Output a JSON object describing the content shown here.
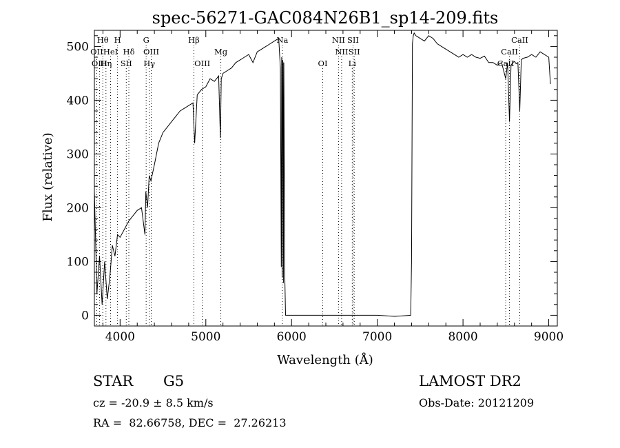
{
  "chart_data": {
    "type": "line",
    "title": "spec-56271-GAC084N26B1_sp14-209.fits",
    "xlabel": "Wavelength (Å)",
    "ylabel": "Flux (relative)",
    "xlim": [
      3700,
      9100
    ],
    "ylim": [
      -20,
      530
    ],
    "xticks": [
      4000,
      5000,
      6000,
      7000,
      8000,
      9000
    ],
    "yticks": [
      0,
      100,
      200,
      300,
      400,
      500
    ],
    "grid": false,
    "series": [
      {
        "x": [
          3700,
          3730,
          3760,
          3790,
          3820,
          3850,
          3880,
          3910,
          3940,
          3970,
          4000,
          4050,
          4100,
          4150,
          4200,
          4250,
          4290,
          4300,
          4320,
          4340,
          4360,
          4400,
          4450,
          4500,
          4550,
          4600,
          4650,
          4700,
          4750,
          4800,
          4850,
          4870,
          4900,
          4950,
          5000,
          5050,
          5100,
          5150,
          5170,
          5180,
          5200,
          5250,
          5300,
          5350,
          5400,
          5450,
          5500,
          5550,
          5600,
          5650,
          5700,
          5750,
          5800,
          5850,
          5870,
          5880,
          5885,
          5890,
          5895,
          5900,
          5905,
          5910,
          5920,
          5930,
          5940,
          5950,
          5960,
          6000,
          6500,
          7000,
          7200,
          7300,
          7390,
          7400,
          7410,
          7420,
          7430,
          7450,
          7500,
          7550,
          7600,
          7650,
          7700,
          7750,
          7800,
          7850,
          7900,
          7950,
          8000,
          8050,
          8100,
          8150,
          8200,
          8250,
          8300,
          8350,
          8400,
          8450,
          8498,
          8520,
          8542,
          8560,
          8580,
          8600,
          8620,
          8640,
          8662,
          8680,
          8700,
          8750,
          8800,
          8850,
          8900,
          8950,
          9000,
          9020
        ],
        "y": [
          230,
          40,
          110,
          20,
          100,
          30,
          70,
          130,
          110,
          150,
          145,
          160,
          175,
          185,
          195,
          200,
          150,
          230,
          200,
          260,
          250,
          280,
          320,
          340,
          350,
          360,
          370,
          380,
          385,
          390,
          395,
          320,
          410,
          420,
          425,
          440,
          435,
          445,
          330,
          440,
          450,
          455,
          460,
          470,
          475,
          480,
          485,
          470,
          490,
          495,
          500,
          505,
          510,
          515,
          460,
          90,
          480,
          70,
          475,
          470,
          60,
          470,
          80,
          0,
          0,
          0,
          0,
          0,
          0,
          0,
          -2,
          -1,
          0,
          100,
          505,
          520,
          525,
          520,
          515,
          510,
          520,
          515,
          505,
          500,
          495,
          490,
          485,
          480,
          485,
          480,
          485,
          480,
          478,
          482,
          470,
          470,
          465,
          470,
          440,
          470,
          360,
          465,
          470,
          472,
          468,
          470,
          380,
          475,
          478,
          480,
          485,
          480,
          490,
          485,
          480,
          430
        ]
      }
    ],
    "spectral_lines": [
      {
        "label": "Hθ",
        "x": 3798,
        "row": 0
      },
      {
        "label": "H",
        "x": 3970,
        "row": 0
      },
      {
        "label": "G",
        "x": 4304,
        "row": 0
      },
      {
        "label": "Hβ",
        "x": 4861,
        "row": 0
      },
      {
        "label": "Na",
        "x": 5893,
        "row": 0
      },
      {
        "label": "NII",
        "x": 6548,
        "row": 0
      },
      {
        "label": "SII",
        "x": 6717,
        "row": 0
      },
      {
        "label": "CaII",
        "x": 8662,
        "row": 0
      },
      {
        "label": "OII",
        "x": 3727,
        "row": 1
      },
      {
        "label": "HeI",
        "x": 3889,
        "row": 1
      },
      {
        "label": "Hδ",
        "x": 4102,
        "row": 1
      },
      {
        "label": "OIII",
        "x": 4363,
        "row": 1
      },
      {
        "label": "Mg",
        "x": 5175,
        "row": 1
      },
      {
        "label": "NII",
        "x": 6584,
        "row": 1
      },
      {
        "label": "SII",
        "x": 6731,
        "row": 1
      },
      {
        "label": "CaII",
        "x": 8542,
        "row": 1
      },
      {
        "label": "OIII",
        "x": 3760,
        "row": 2
      },
      {
        "label": "Hη",
        "x": 3835,
        "row": 2
      },
      {
        "label": "SII",
        "x": 4072,
        "row": 2
      },
      {
        "label": "Hγ",
        "x": 4340,
        "row": 2
      },
      {
        "label": "OIII",
        "x": 4959,
        "row": 2
      },
      {
        "label": "OI",
        "x": 6364,
        "row": 2
      },
      {
        "label": "Li",
        "x": 6708,
        "row": 2
      },
      {
        "label": "CaII",
        "x": 8498,
        "row": 2
      }
    ]
  },
  "info": {
    "object_class": "STAR",
    "subclass": "G5",
    "survey": "LAMOST DR2",
    "redshift": "cz = -20.9 ± 8.5 km/s",
    "obs_date": "Obs-Date: 20121209",
    "coords": "RA =  82.66758, DEC =  27.26213"
  }
}
